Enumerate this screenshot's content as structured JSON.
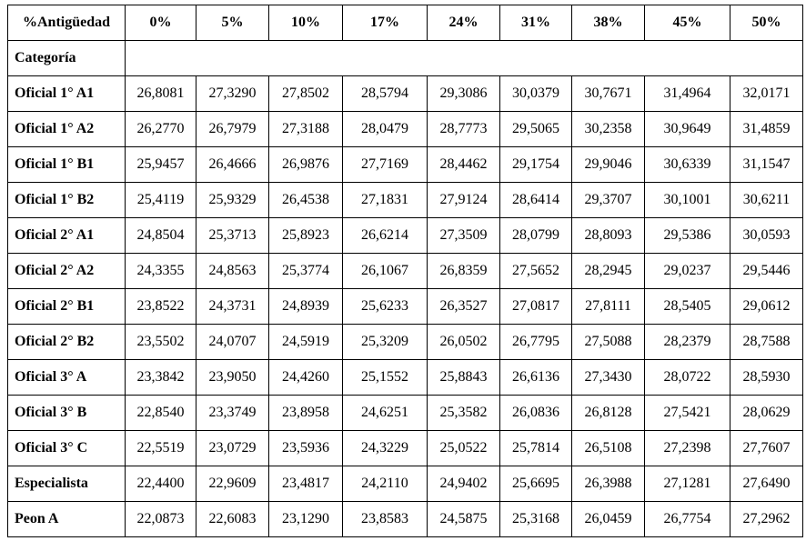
{
  "table": {
    "header": [
      "%Antigüedad",
      "0%",
      "5%",
      "10%",
      "17%",
      "24%",
      "31%",
      "38%",
      "45%",
      "50%"
    ],
    "subheader": "Categoría",
    "rows": [
      [
        "Oficial 1° A1",
        "26,8081",
        "27,3290",
        "27,8502",
        "28,5794",
        "29,3086",
        "30,0379",
        "30,7671",
        "31,4964",
        "32,0171"
      ],
      [
        "Oficial 1° A2",
        "26,2770",
        "26,7979",
        "27,3188",
        "28,0479",
        "28,7773",
        "29,5065",
        "30,2358",
        "30,9649",
        "31,4859"
      ],
      [
        "Oficial 1° B1",
        "25,9457",
        "26,4666",
        "26,9876",
        "27,7169",
        "28,4462",
        "29,1754",
        "29,9046",
        "30,6339",
        "31,1547"
      ],
      [
        "Oficial 1° B2",
        "25,4119",
        "25,9329",
        "26,4538",
        "27,1831",
        "27,9124",
        "28,6414",
        "29,3707",
        "30,1001",
        "30,6211"
      ],
      [
        "Oficial 2° A1",
        "24,8504",
        "25,3713",
        "25,8923",
        "26,6214",
        "27,3509",
        "28,0799",
        "28,8093",
        "29,5386",
        "30,0593"
      ],
      [
        "Oficial 2° A2",
        "24,3355",
        "24,8563",
        "25,3774",
        "26,1067",
        "26,8359",
        "27,5652",
        "28,2945",
        "29,0237",
        "29,5446"
      ],
      [
        "Oficial 2° B1",
        "23,8522",
        "24,3731",
        "24,8939",
        "25,6233",
        "26,3527",
        "27,0817",
        "27,8111",
        "28,5405",
        "29,0612"
      ],
      [
        "Oficial 2° B2",
        "23,5502",
        "24,0707",
        "24,5919",
        "25,3209",
        "26,0502",
        "26,7795",
        "27,5088",
        "28,2379",
        "28,7588"
      ],
      [
        "Oficial 3° A",
        "23,3842",
        "23,9050",
        "24,4260",
        "25,1552",
        "25,8843",
        "26,6136",
        "27,3430",
        "28,0722",
        "28,5930"
      ],
      [
        "Oficial 3° B",
        "22,8540",
        "23,3749",
        "23,8958",
        "24,6251",
        "25,3582",
        "26,0836",
        "26,8128",
        "27,5421",
        "28,0629"
      ],
      [
        "Oficial 3° C",
        "22,5519",
        "23,0729",
        "23,5936",
        "24,3229",
        "25,0522",
        "25,7814",
        "26,5108",
        "27,2398",
        "27,7607"
      ],
      [
        "Especialista",
        "22,4400",
        "22,9609",
        "23,4817",
        "24,2110",
        "24,9402",
        "25,6695",
        "26,3988",
        "27,1281",
        "27,6490"
      ],
      [
        "Peon A",
        "22,0873",
        "22,6083",
        "23,1290",
        "23,8583",
        "24,5875",
        "25,3168",
        "26,0459",
        "26,7754",
        "27,2962"
      ]
    ]
  }
}
